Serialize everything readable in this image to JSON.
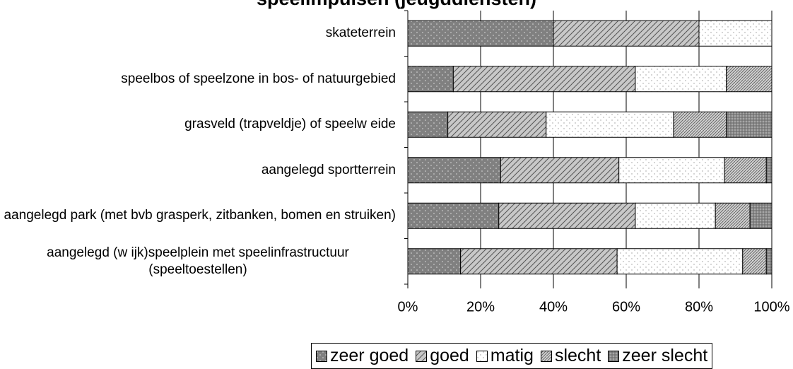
{
  "chart_data": {
    "type": "stacked_barh",
    "title": "speelimpulsen (jeugddiensten)",
    "categories": [
      "skateterrein",
      "speelbos of speelzone in bos- of natuurgebied",
      "grasveld (trapveldje) of speelw eide",
      "aangelegd sportterrein",
      "aangelegd park (met bvb grasperk, zitbanken, bomen en struiken)",
      "aangelegd (w ijk)speelplein met speelinfrastructuur (speeltoestellen)"
    ],
    "series": [
      {
        "name": "zeer goed",
        "color": "#808080",
        "values": [
          40,
          12.5,
          11,
          25.5,
          25,
          14.5
        ]
      },
      {
        "name": "goed",
        "color": "#c8c8c8",
        "values": [
          40,
          50,
          27,
          32.5,
          37.5,
          43
        ]
      },
      {
        "name": "matig",
        "color": "#ffffff",
        "values": [
          20,
          25,
          35,
          29,
          22,
          34.5
        ]
      },
      {
        "name": "slecht",
        "color": "#d4d4d4",
        "values": [
          0,
          12.5,
          14.5,
          11.5,
          9.5,
          6.5
        ]
      },
      {
        "name": "zeer slecht",
        "color": "#a6a6a6",
        "values": [
          0,
          0,
          12.5,
          1.5,
          6,
          1.5
        ]
      }
    ],
    "xlim": [
      0,
      100
    ],
    "xticks": [
      {
        "value": 0,
        "label": "0%"
      },
      {
        "value": 20,
        "label": "20%"
      },
      {
        "value": 40,
        "label": "40%"
      },
      {
        "value": 60,
        "label": "60%"
      },
      {
        "value": 80,
        "label": "80%"
      },
      {
        "value": 100,
        "label": "100%"
      }
    ],
    "grid": true,
    "legend": "bottom"
  }
}
